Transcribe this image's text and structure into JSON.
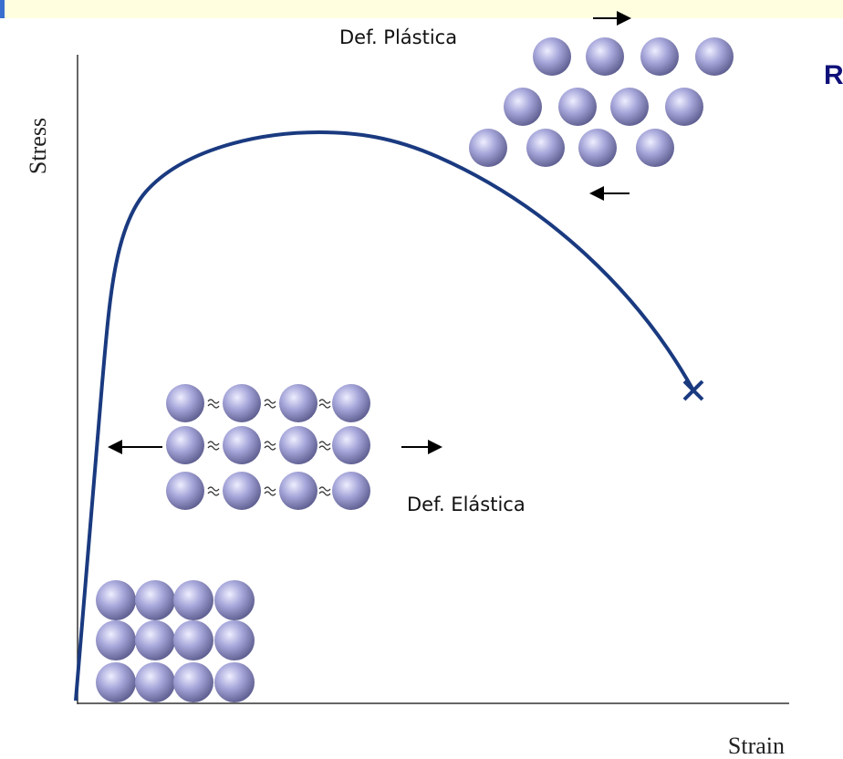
{
  "axes": {
    "y_label": "Stress",
    "x_label": "Strain"
  },
  "labels": {
    "plastic": "Def. Plástica",
    "elastic": "Def. Elástica"
  },
  "heading": "R"
}
